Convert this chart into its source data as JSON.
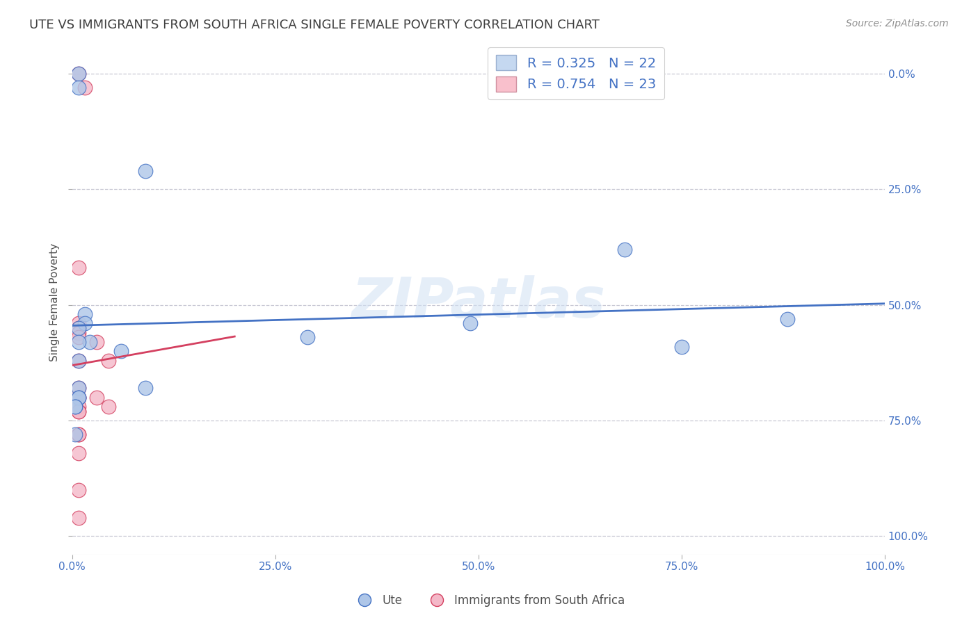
{
  "title": "UTE VS IMMIGRANTS FROM SOUTH AFRICA SINGLE FEMALE POVERTY CORRELATION CHART",
  "source": "Source: ZipAtlas.com",
  "ylabel": "Single Female Poverty",
  "watermark": "ZIPatlas",
  "ute_label": "Ute",
  "imm_label": "Immigrants from South Africa",
  "ute_R": 0.325,
  "ute_N": 22,
  "imm_R": 0.754,
  "imm_N": 23,
  "ute_color": "#aec6e8",
  "imm_color": "#f4b8c8",
  "ute_line_color": "#4472c4",
  "imm_line_color": "#d44060",
  "ute_x": [
    0.008,
    0.008,
    0.016,
    0.016,
    0.008,
    0.022,
    0.008,
    0.008,
    0.008,
    0.008,
    0.008,
    0.004,
    0.004,
    0.004,
    0.06,
    0.09,
    0.09,
    0.29,
    0.49,
    0.68,
    0.75,
    0.88
  ],
  "ute_y": [
    1.0,
    0.97,
    0.48,
    0.46,
    0.45,
    0.42,
    0.42,
    0.38,
    0.32,
    0.3,
    0.3,
    0.28,
    0.28,
    0.22,
    0.4,
    0.32,
    0.79,
    0.43,
    0.46,
    0.62,
    0.41,
    0.47
  ],
  "imm_x": [
    0.008,
    0.016,
    0.008,
    0.008,
    0.008,
    0.008,
    0.008,
    0.008,
    0.008,
    0.008,
    0.008,
    0.008,
    0.008,
    0.008,
    0.008,
    0.008,
    0.008,
    0.03,
    0.03,
    0.045,
    0.045,
    0.008,
    0.008
  ],
  "imm_y": [
    1.0,
    0.97,
    0.58,
    0.46,
    0.45,
    0.44,
    0.43,
    0.38,
    0.32,
    0.3,
    0.3,
    0.28,
    0.27,
    0.27,
    0.22,
    0.22,
    0.18,
    0.42,
    0.3,
    0.38,
    0.28,
    0.1,
    0.04
  ],
  "xlim": [
    0.0,
    1.0
  ],
  "ylim": [
    -0.04,
    1.05
  ],
  "xticks": [
    0.0,
    0.25,
    0.5,
    0.75,
    1.0
  ],
  "xtick_labels": [
    "0.0%",
    "25.0%",
    "50.0%",
    "75.0%",
    "100.0%"
  ],
  "yticks": [
    0.0,
    0.25,
    0.5,
    0.75,
    1.0
  ],
  "ytick_labels_right": [
    "0.0%",
    "25.0%",
    "50.0%",
    "75.0%",
    "100.0%"
  ],
  "background_color": "#ffffff",
  "grid_color": "#c8c8d4",
  "title_color": "#404040",
  "axis_color": "#4472c4",
  "legend_box_color_ute": "#c5d8f0",
  "legend_box_color_imm": "#f9c0cc"
}
